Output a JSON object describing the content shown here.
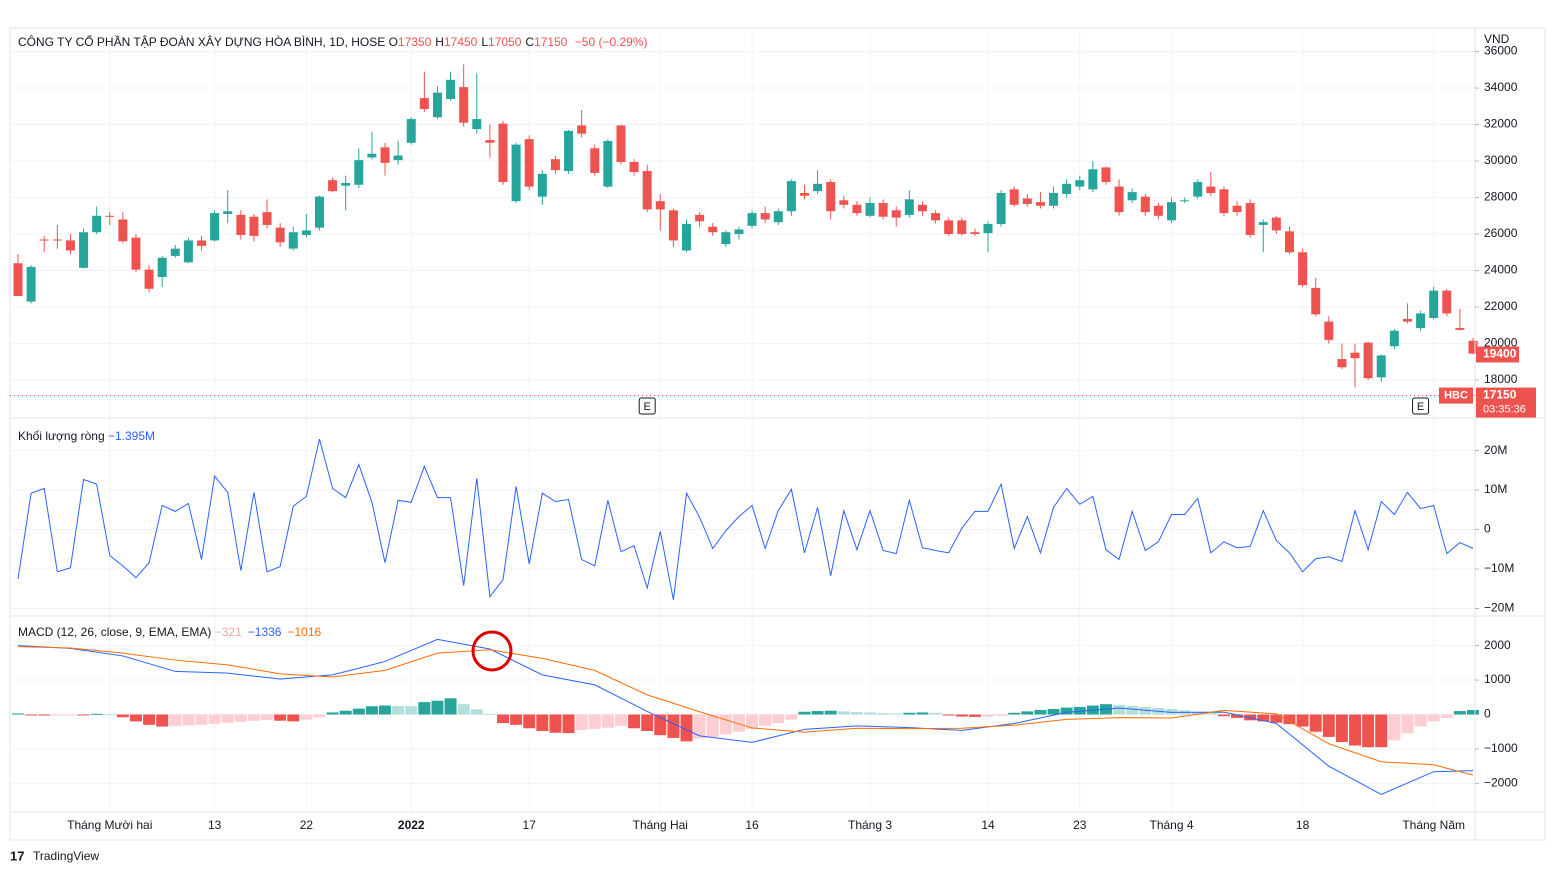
{
  "chart_data": [
    {
      "type": "candlestick",
      "title": "CÔNG TY CỔ PHẦN TẬP ĐOÀN XÂY DỰNG HÒA BÌNH, 1D, HOSE",
      "legend": [
        {
          "key": "O",
          "value": 17350
        },
        {
          "key": "H",
          "value": 17450
        },
        {
          "key": "L",
          "value": 17050
        },
        {
          "key": "C",
          "value": 17150
        }
      ],
      "change": "−50 (−0.29%)",
      "currency": "VND",
      "up_color": "#26a69a",
      "down_color": "#ef5350",
      "open": [
        24400,
        22300,
        25700,
        25700,
        25650,
        24150,
        26100,
        27000,
        26800,
        25800,
        24050,
        23650,
        24800,
        24450,
        25650,
        25650,
        27100,
        27050,
        26950,
        27200,
        26350,
        25200,
        25950,
        26350,
        28950,
        28650,
        28700,
        30200,
        30750,
        30050,
        31000,
        33450,
        32400,
        33400,
        34050,
        31750,
        31150,
        32050,
        27800,
        31200,
        28050,
        30100,
        29450,
        31950,
        30700,
        28600,
        31950,
        29950,
        29450,
        27800,
        27300,
        25100,
        27050,
        26400,
        25450,
        26000,
        26450,
        27150,
        26650,
        27250,
        28250,
        28350,
        28850,
        27850,
        27600,
        27000,
        27700,
        27300,
        27050,
        27600,
        27150,
        26750,
        26750,
        26100,
        26050,
        26550,
        28450,
        27950,
        27750,
        27550,
        28200,
        28600,
        28450,
        29650,
        28600,
        27850,
        28050,
        27550,
        26750,
        27800,
        28050,
        28600,
        28450,
        27550,
        27700,
        26500,
        26900,
        26150,
        25000,
        23050,
        21200,
        19150,
        19500,
        20050,
        18150,
        19850,
        21350,
        20850,
        21400,
        22900,
        20850,
        20150
      ],
      "high": [
        24900,
        24300,
        25900,
        26500,
        26000,
        26300,
        27500,
        27200,
        27200,
        26000,
        24300,
        24800,
        25400,
        25800,
        25900,
        27300,
        28400,
        27300,
        27100,
        27900,
        26600,
        26400,
        27100,
        28100,
        29100,
        29200,
        30700,
        31600,
        31000,
        31100,
        32400,
        34900,
        34100,
        34900,
        35300,
        34800,
        32000,
        32200,
        31000,
        31400,
        29500,
        30300,
        31700,
        32800,
        30900,
        31200,
        32000,
        30100,
        29800,
        28200,
        27400,
        26800,
        27200,
        26600,
        26200,
        26400,
        27300,
        27500,
        27400,
        29000,
        28700,
        29500,
        29000,
        28100,
        27800,
        28000,
        27900,
        27500,
        28400,
        27800,
        27300,
        26900,
        26900,
        26300,
        26700,
        28400,
        28600,
        28200,
        28300,
        28600,
        29000,
        29200,
        30000,
        29700,
        29000,
        28500,
        28200,
        27700,
        28000,
        28000,
        29000,
        29400,
        28600,
        27800,
        27900,
        26800,
        27000,
        26400,
        25200,
        23600,
        21500,
        20000,
        20000,
        20100,
        19400,
        20800,
        22200,
        21800,
        23100,
        23000,
        21900,
        20300
      ],
      "low": [
        22600,
        22200,
        25000,
        25200,
        24900,
        24100,
        26000,
        26500,
        25500,
        23900,
        22800,
        23100,
        24700,
        24400,
        25100,
        25600,
        26600,
        25700,
        25600,
        26300,
        25300,
        25100,
        25800,
        26200,
        28300,
        27300,
        28500,
        30100,
        29200,
        29800,
        30900,
        32700,
        32300,
        33300,
        31900,
        31500,
        30200,
        28700,
        27700,
        28400,
        27600,
        29300,
        29300,
        31300,
        29200,
        28500,
        29800,
        29200,
        27200,
        26200,
        25300,
        25000,
        26400,
        25900,
        25300,
        25700,
        26300,
        26600,
        26500,
        27000,
        27900,
        28200,
        26800,
        27400,
        27000,
        26900,
        26800,
        26400,
        26900,
        27000,
        26600,
        25900,
        25900,
        25900,
        25000,
        26400,
        27500,
        27500,
        27400,
        27400,
        28000,
        28400,
        28300,
        28700,
        27000,
        27700,
        27000,
        26800,
        26600,
        27700,
        27900,
        28100,
        27000,
        27000,
        25800,
        25000,
        26000,
        24900,
        23100,
        21500,
        20000,
        18600,
        17600,
        18000,
        17900,
        19700,
        21100,
        20700,
        21300,
        21500,
        20700,
        19400
      ],
      "close": [
        22600,
        24200,
        25650,
        25650,
        25100,
        26100,
        27000,
        26950,
        25600,
        24050,
        23000,
        24700,
        25200,
        25650,
        25350,
        27150,
        27250,
        25950,
        25900,
        26500,
        25550,
        26100,
        26200,
        28050,
        28350,
        28800,
        30050,
        30400,
        29900,
        30300,
        32300,
        32850,
        33750,
        34450,
        32100,
        32300,
        31000,
        28850,
        30900,
        28600,
        29300,
        29500,
        31650,
        31500,
        29350,
        31100,
        29950,
        29400,
        27350,
        27350,
        25650,
        26550,
        26700,
        26100,
        26100,
        26250,
        27150,
        26800,
        27250,
        28900,
        28100,
        28750,
        27250,
        27600,
        27150,
        27700,
        26950,
        26900,
        27900,
        27250,
        26750,
        26000,
        26000,
        26000,
        26550,
        28250,
        27600,
        27650,
        27550,
        28250,
        28750,
        28950,
        29550,
        28850,
        27200,
        28300,
        27200,
        27000,
        27750,
        27850,
        28850,
        28250,
        27150,
        27200,
        25950,
        26650,
        26200,
        25000,
        23200,
        21600,
        20200,
        18700,
        19200,
        18100,
        19350,
        20700,
        21200,
        21650,
        22900,
        21650,
        20750,
        19450
      ],
      "ylim": [
        15920,
        37290
      ],
      "yticks": [
        18000,
        20000,
        22000,
        24000,
        26000,
        28000,
        30000,
        32000,
        34000,
        36000
      ],
      "grid": true,
      "close_marker": 19400,
      "last_price": 17150,
      "symbol": "HBC",
      "countdown": "03:35:36",
      "events": [
        {
          "index": 48,
          "label": "E"
        },
        {
          "index": 107,
          "label": "E"
        }
      ]
    },
    {
      "type": "line",
      "series": [
        {
          "name": "Khối lượng ròng",
          "value_label": "−1.395M",
          "color": "#2962ff",
          "values": [
            -12.5,
            9.2,
            10.4,
            -10.7,
            -9.7,
            12.7,
            11.5,
            -6.6,
            -9.2,
            -12.2,
            -8.4,
            6.1,
            4.6,
            6.6,
            -7.6,
            13.5,
            9.4,
            -10.4,
            9.4,
            -10.7,
            -9.4,
            5.9,
            8.4,
            22.9,
            10.4,
            8.1,
            16.5,
            6.9,
            -8.4,
            7.4,
            6.9,
            16.0,
            8.1,
            8.1,
            -14.2,
            13.0,
            -17.0,
            -12.7,
            10.9,
            -8.7,
            9.2,
            7.1,
            7.6,
            -7.6,
            -9.2,
            7.4,
            -5.6,
            -4.1,
            -14.8,
            -0.5,
            -17.8,
            9.2,
            3.1,
            -4.8,
            -0.3,
            3.3,
            6.1,
            -4.8,
            4.8,
            10.2,
            -5.9,
            5.6,
            -11.7,
            4.8,
            -5.1,
            4.8,
            -5.3,
            -6.1,
            7.4,
            -4.6,
            -5.3,
            -5.9,
            0.3,
            4.6,
            4.6,
            11.5,
            -4.8,
            3.3,
            -5.9,
            5.6,
            10.4,
            6.4,
            8.4,
            -5.1,
            -7.6,
            4.6,
            -5.3,
            -3.1,
            3.8,
            3.8,
            7.9,
            -5.9,
            -3.1,
            -4.6,
            -4.3,
            4.8,
            -2.8,
            -5.9,
            -10.7,
            -7.4,
            -6.9,
            -8.1,
            4.8,
            -5.1,
            7.1,
            3.8,
            9.4,
            5.3,
            6.1,
            -6.1,
            -3.3,
            -4.8
          ]
        }
      ],
      "ylim": [
        -21.9,
        28
      ],
      "yticks": [
        {
          "value": -20,
          "label": "−20M"
        },
        {
          "value": -10,
          "label": "−10M"
        },
        0,
        {
          "value": 10,
          "label": "10M"
        },
        {
          "value": 20,
          "label": "20M"
        }
      ],
      "grid": true
    },
    {
      "type": "macd",
      "title": "MACD (12, 26, close, 9, EMA, EMA)",
      "series": [
        {
          "kind": "bar",
          "value_label": "−321",
          "color": "#f7a5a5",
          "colors": [
            "#26a69a",
            "#b2dfdb",
            "#ffcdd2",
            "#ef5350"
          ],
          "values": [
            30,
            -20,
            -30,
            -20,
            -10,
            -20,
            20,
            10,
            -80,
            -200,
            -300,
            -350,
            -330,
            -320,
            -300,
            -270,
            -240,
            -210,
            -180,
            -160,
            -180,
            -200,
            -150,
            -80,
            60,
            110,
            170,
            240,
            260,
            250,
            240,
            360,
            400,
            470,
            300,
            150,
            20,
            -250,
            -300,
            -400,
            -480,
            -530,
            -540,
            -450,
            -420,
            -380,
            -330,
            -400,
            -480,
            -600,
            -680,
            -780,
            -700,
            -650,
            -580,
            -500,
            -420,
            -330,
            -250,
            -150,
            80,
            100,
            110,
            90,
            70,
            60,
            40,
            30,
            50,
            60,
            50,
            -30,
            -60,
            -70,
            -60,
            -40,
            50,
            90,
            130,
            160,
            200,
            220,
            260,
            300,
            280,
            250,
            220,
            190,
            160,
            120,
            80,
            60,
            -50,
            -100,
            -170,
            -200,
            -240,
            -280,
            -350,
            -500,
            -650,
            -800,
            -900,
            -950,
            -950,
            -750,
            -550,
            -350,
            -200,
            -100,
            100,
            130
          ]
        },
        {
          "kind": "line",
          "value_label": "−1336",
          "color": "#2962ff",
          "x": [
            0,
            4,
            8,
            12,
            16,
            20,
            24,
            28,
            32,
            36,
            40,
            44,
            48,
            52,
            56,
            60,
            64,
            68,
            72,
            76,
            80,
            84,
            88,
            92,
            96,
            100,
            104,
            108,
            111
          ],
          "values": [
            2000,
            1920,
            1700,
            1250,
            1200,
            1030,
            1150,
            1540,
            2180,
            1900,
            1150,
            860,
            90,
            -620,
            -810,
            -430,
            -330,
            -380,
            -460,
            -260,
            60,
            190,
            60,
            70,
            -260,
            -1500,
            -2320,
            -1660,
            -1630
          ]
        },
        {
          "kind": "line",
          "value_label": "−1016",
          "color": "#ff6d00",
          "x": [
            0,
            4,
            8,
            12,
            16,
            20,
            24,
            28,
            32,
            36,
            40,
            44,
            48,
            52,
            56,
            60,
            64,
            68,
            72,
            76,
            80,
            84,
            88,
            92,
            96,
            100,
            104,
            108,
            111
          ],
          "values": [
            1970,
            1930,
            1780,
            1580,
            1440,
            1180,
            1090,
            1280,
            1780,
            1880,
            1630,
            1280,
            570,
            80,
            -390,
            -510,
            -400,
            -410,
            -400,
            -310,
            -140,
            -90,
            -100,
            120,
            20,
            -850,
            -1370,
            -1460,
            -1760
          ]
        }
      ],
      "ylim": [
        -2830,
        2830
      ],
      "yticks": [
        {
          "value": -2000,
          "label": "−2000"
        },
        {
          "value": -1000,
          "label": "−1000"
        },
        0,
        1000,
        2000
      ],
      "grid": true,
      "x_tick_labels": [
        {
          "index": 7,
          "label": "Tháng Mười hai"
        },
        {
          "index": 15,
          "label": "13"
        },
        {
          "index": 22,
          "label": "22"
        },
        {
          "index": 30,
          "label": "2022"
        },
        {
          "index": 39,
          "label": "17"
        },
        {
          "index": 49,
          "label": "Tháng Hai"
        },
        {
          "index": 56,
          "label": "16"
        },
        {
          "index": 65,
          "label": "Tháng 3"
        },
        {
          "index": 74,
          "label": "14"
        },
        {
          "index": 81,
          "label": "23"
        },
        {
          "index": 88,
          "label": "Tháng 4"
        },
        {
          "index": 98,
          "label": "18"
        },
        {
          "index": 108,
          "label": "Tháng Năm"
        }
      ]
    }
  ],
  "footer": {
    "brand": "TradingView"
  }
}
